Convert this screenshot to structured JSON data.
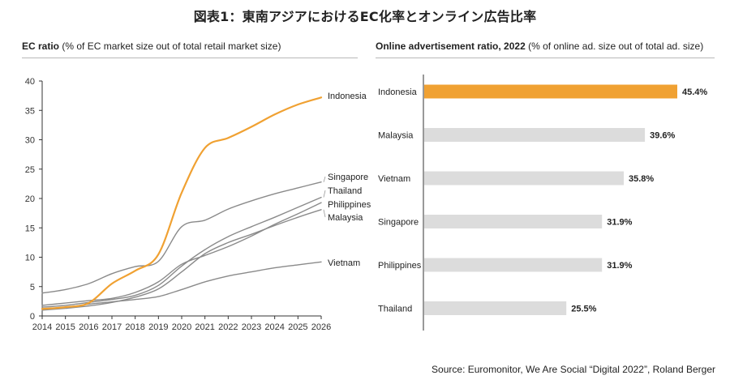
{
  "title": "図表1：東南アジアにおけるEC化率とオンライン広告比率",
  "source": "Source: Euromonitor, We Are Social “Digital 2022”, Roland Berger",
  "colors": {
    "highlight": "#F0A132",
    "line_gray": "#8a8a8a",
    "bar_gray": "#dcdcdc",
    "axis": "#333333"
  },
  "left_title": {
    "bold": "EC ratio",
    "rest": " (% of EC market size out of total retail market size)"
  },
  "right_title": {
    "bold": "Online advertisement ratio, 2022",
    "rest": " (% of online ad. size out of total ad. size)"
  },
  "chart_data": [
    {
      "type": "line",
      "x": [
        2014,
        2015,
        2016,
        2017,
        2018,
        2019,
        2020,
        2021,
        2022,
        2023,
        2024,
        2025,
        2026
      ],
      "xlim": [
        2014,
        2026
      ],
      "ylim": [
        0,
        40
      ],
      "yticks": [
        0,
        5,
        10,
        15,
        20,
        25,
        30,
        35,
        40
      ],
      "series": [
        {
          "name": "Indonesia",
          "color": "#F0A132",
          "values": [
            1.2,
            1.5,
            2.2,
            5.5,
            7.7,
            10.5,
            21,
            28.6,
            30.3,
            32.2,
            34.3,
            36.0,
            37.2
          ]
        },
        {
          "name": "Singapore",
          "color": "#8a8a8a",
          "values": [
            3.9,
            4.5,
            5.5,
            7.2,
            8.4,
            9.3,
            15.2,
            16.3,
            18.2,
            19.6,
            20.8,
            21.8,
            22.8
          ]
        },
        {
          "name": "Thailand",
          "color": "#8a8a8a",
          "values": [
            1.5,
            1.8,
            2.3,
            2.8,
            3.5,
            5.2,
            8.5,
            11.3,
            13.5,
            15.2,
            16.8,
            18.5,
            20.2
          ]
        },
        {
          "name": "Philippines",
          "color": "#8a8a8a",
          "values": [
            1.8,
            2.2,
            2.6,
            3.0,
            4.0,
            5.8,
            8.8,
            10.3,
            11.8,
            13.6,
            15.6,
            17.4,
            19.3
          ]
        },
        {
          "name": "Malaysia",
          "color": "#8a8a8a",
          "values": [
            1.0,
            1.3,
            1.7,
            2.3,
            3.2,
            4.6,
            7.5,
            10.6,
            12.5,
            13.9,
            15.4,
            16.8,
            18.1
          ]
        },
        {
          "name": "Vietnam",
          "color": "#8a8a8a",
          "values": [
            1.2,
            1.5,
            2.0,
            2.4,
            2.8,
            3.3,
            4.5,
            5.8,
            6.8,
            7.5,
            8.2,
            8.7,
            9.2
          ]
        }
      ]
    },
    {
      "type": "bar",
      "orientation": "horizontal",
      "categories": [
        "Indonesia",
        "Malaysia",
        "Vietnam",
        "Singapore",
        "Philippines",
        "Thailand"
      ],
      "values": [
        45.4,
        39.6,
        35.8,
        31.9,
        31.9,
        25.5
      ],
      "labels": [
        "45.4%",
        "39.6%",
        "35.8%",
        "31.9%",
        "31.9%",
        "25.5%"
      ],
      "highlight": "Indonesia"
    }
  ]
}
